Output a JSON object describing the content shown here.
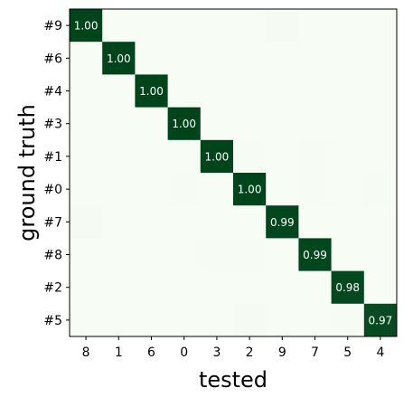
{
  "chart_data": {
    "type": "heatmap",
    "xlabel": "tested",
    "ylabel": "ground truth",
    "x_categories": [
      "8",
      "1",
      "6",
      "0",
      "3",
      "2",
      "9",
      "7",
      "5",
      "4"
    ],
    "y_categories": [
      "#9",
      "#6",
      "#4",
      "#3",
      "#1",
      "#0",
      "#7",
      "#8",
      "#2",
      "#5"
    ],
    "value_range": [
      0,
      1
    ],
    "colormap": {
      "low": "#f7fcf5",
      "high": "#00441b"
    },
    "values": [
      [
        1.0,
        0,
        0,
        0,
        0,
        0,
        0.01,
        0,
        0,
        0
      ],
      [
        0,
        1.0,
        0,
        0,
        0,
        0,
        0,
        0,
        0,
        0
      ],
      [
        0,
        0,
        1.0,
        0,
        0,
        0,
        0,
        0,
        0,
        0
      ],
      [
        0,
        0,
        0,
        1.0,
        0,
        0,
        0,
        0,
        0,
        0
      ],
      [
        0,
        0,
        0,
        0,
        1.0,
        0.003,
        0,
        0.003,
        0,
        0
      ],
      [
        0,
        0,
        0,
        0.003,
        0,
        1.0,
        0,
        0.005,
        0,
        0.005
      ],
      [
        0.01,
        0,
        0,
        0,
        0,
        0,
        0.99,
        0,
        0,
        0
      ],
      [
        0,
        0,
        0,
        0,
        0.005,
        0.005,
        0,
        0.99,
        0,
        0
      ],
      [
        0,
        0,
        0,
        0,
        0,
        0,
        0,
        0,
        0.98,
        0
      ],
      [
        0,
        0,
        0,
        0,
        0,
        0.01,
        0,
        0,
        0.005,
        0.97
      ]
    ],
    "annotations": [
      {
        "row": 0,
        "col": 0,
        "text": "1.00"
      },
      {
        "row": 1,
        "col": 1,
        "text": "1.00"
      },
      {
        "row": 2,
        "col": 2,
        "text": "1.00"
      },
      {
        "row": 3,
        "col": 3,
        "text": "1.00"
      },
      {
        "row": 4,
        "col": 4,
        "text": "1.00"
      },
      {
        "row": 5,
        "col": 5,
        "text": "1.00"
      },
      {
        "row": 6,
        "col": 6,
        "text": "0.99"
      },
      {
        "row": 7,
        "col": 7,
        "text": "0.99"
      },
      {
        "row": 8,
        "col": 8,
        "text": "0.98"
      },
      {
        "row": 9,
        "col": 9,
        "text": "0.97"
      }
    ]
  }
}
